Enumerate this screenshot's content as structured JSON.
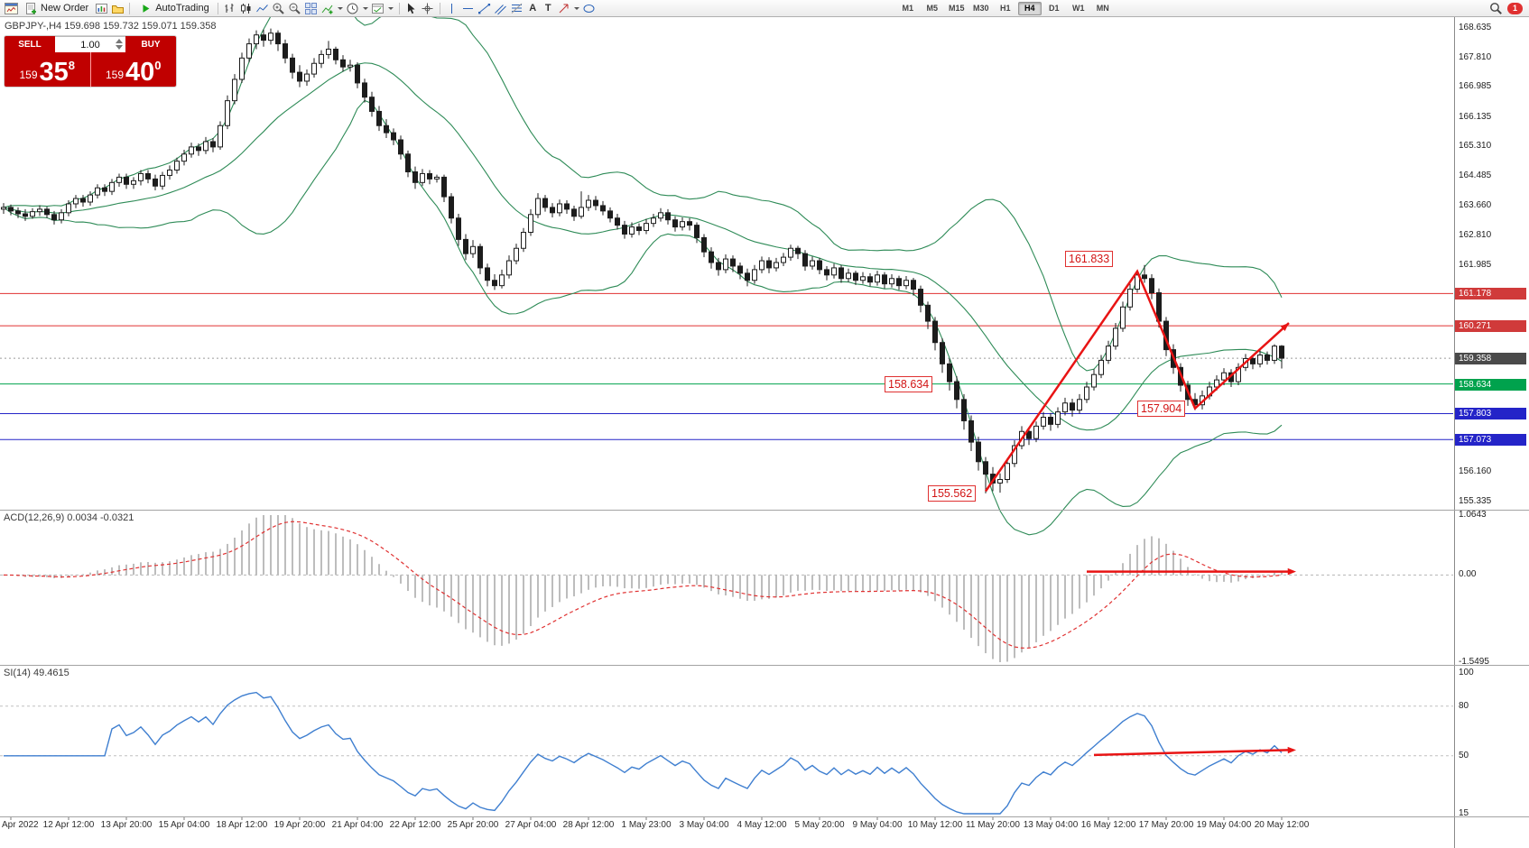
{
  "toolbar": {
    "new_order_label": "New Order",
    "autotrading_label": "AutoTrading",
    "timeframes": [
      "M1",
      "M5",
      "M15",
      "M30",
      "H1",
      "H4",
      "D1",
      "W1",
      "MN"
    ],
    "active_timeframe": "H4",
    "badge": "1",
    "text_tool_letter": "A",
    "label_tool_letter": "T"
  },
  "chart": {
    "symbol_line": "GBPJPY-,H4  159.698 159.732 159.071 159.358"
  },
  "trade_panel": {
    "sell_label": "SELL",
    "buy_label": "BUY",
    "volume": "1.00",
    "sell_base": "159",
    "sell_pips": "35",
    "sell_sup": "8",
    "buy_base": "159",
    "buy_pips": "40",
    "buy_sup": "0"
  },
  "macd": {
    "label": "ACD(12,26,9) 0.0034 -0.0321",
    "axis_labels": [
      "1.0643",
      "0.00",
      "-1.5495"
    ]
  },
  "rsi": {
    "label": "SI(14) 49.4615",
    "axis_labels": [
      "100",
      "80",
      "50",
      "15"
    ],
    "levels": [
      80,
      50
    ]
  },
  "price_axis": {
    "labels": [
      "168.635",
      "167.810",
      "166.985",
      "166.135",
      "165.310",
      "164.485",
      "163.660",
      "162.810",
      "161.985",
      "156.160",
      "155.335"
    ],
    "tags": [
      {
        "text": "161.178",
        "bg": "#d03a3a"
      },
      {
        "text": "160.271",
        "bg": "#d03a3a"
      },
      {
        "text": "159.358",
        "bg": "#4a4a4a"
      },
      {
        "text": "158.634",
        "bg": "#00a24d"
      },
      {
        "text": "157.803",
        "bg": "#2424c8"
      },
      {
        "text": "157.073",
        "bg": "#2424c8"
      }
    ]
  },
  "time_axis": {
    "labels": [
      "Apr 2022",
      "12 Apr 12:00",
      "13 Apr 20:00",
      "15 Apr 04:00",
      "18 Apr 12:00",
      "19 Apr 20:00",
      "21 Apr 04:00",
      "22 Apr 12:00",
      "25 Apr 20:00",
      "27 Apr 04:00",
      "28 Apr 12:00",
      "1 May 23:00",
      "3 May 04:00",
      "4 May 12:00",
      "5 May 20:00",
      "9 May 04:00",
      "10 May 12:00",
      "11 May 20:00",
      "13 May 04:00",
      "16 May 12:00",
      "17 May 20:00",
      "19 May 04:00",
      "20 May 12:00"
    ]
  },
  "chart_data": {
    "type": "candlestick",
    "symbol": "GBPJPY-",
    "timeframe": "H4",
    "title": "GBPJPY-,H4",
    "ohlc_current": {
      "open": 159.698,
      "high": 159.732,
      "low": 159.071,
      "close": 159.358
    },
    "ylim": [
      155.1,
      168.95
    ],
    "candles": [
      [
        163.55,
        163.72,
        163.42,
        163.6
      ],
      [
        163.6,
        163.68,
        163.38,
        163.5
      ],
      [
        163.5,
        163.6,
        163.3,
        163.42
      ],
      [
        163.42,
        163.55,
        163.22,
        163.35
      ],
      [
        163.35,
        163.58,
        163.28,
        163.48
      ],
      [
        163.48,
        163.66,
        163.36,
        163.55
      ],
      [
        163.55,
        163.62,
        163.3,
        163.4
      ],
      [
        163.4,
        163.5,
        163.12,
        163.25
      ],
      [
        163.25,
        163.55,
        163.15,
        163.45
      ],
      [
        163.45,
        163.8,
        163.35,
        163.7
      ],
      [
        163.7,
        163.95,
        163.58,
        163.85
      ],
      [
        163.85,
        163.95,
        163.62,
        163.75
      ],
      [
        163.75,
        164.05,
        163.65,
        163.95
      ],
      [
        163.95,
        164.25,
        163.85,
        164.15
      ],
      [
        164.15,
        164.25,
        163.92,
        164.05
      ],
      [
        164.05,
        164.4,
        163.95,
        164.3
      ],
      [
        164.3,
        164.55,
        164.18,
        164.45
      ],
      [
        164.45,
        164.55,
        164.12,
        164.25
      ],
      [
        164.25,
        164.45,
        164.12,
        164.35
      ],
      [
        164.35,
        164.65,
        164.22,
        164.55
      ],
      [
        164.55,
        164.65,
        164.28,
        164.4
      ],
      [
        164.4,
        164.52,
        164.08,
        164.2
      ],
      [
        164.2,
        164.6,
        164.1,
        164.5
      ],
      [
        164.5,
        164.78,
        164.38,
        164.65
      ],
      [
        164.65,
        165.0,
        164.55,
        164.9
      ],
      [
        164.9,
        165.22,
        164.78,
        165.1
      ],
      [
        165.1,
        165.42,
        165.0,
        165.3
      ],
      [
        165.3,
        165.4,
        165.05,
        165.2
      ],
      [
        165.2,
        165.58,
        165.1,
        165.45
      ],
      [
        165.45,
        165.55,
        165.15,
        165.3
      ],
      [
        165.3,
        166.02,
        165.22,
        165.9
      ],
      [
        165.9,
        166.75,
        165.8,
        166.6
      ],
      [
        166.6,
        167.35,
        166.5,
        167.2
      ],
      [
        167.2,
        167.95,
        167.1,
        167.8
      ],
      [
        167.8,
        168.35,
        167.68,
        168.2
      ],
      [
        168.2,
        168.58,
        168.05,
        168.45
      ],
      [
        168.45,
        168.6,
        168.12,
        168.3
      ],
      [
        168.3,
        168.63,
        168.18,
        168.5
      ],
      [
        168.5,
        168.58,
        168.0,
        168.2
      ],
      [
        168.2,
        168.32,
        167.65,
        167.8
      ],
      [
        167.8,
        167.92,
        167.22,
        167.4
      ],
      [
        167.4,
        167.6,
        166.98,
        167.15
      ],
      [
        167.15,
        167.48,
        167.02,
        167.35
      ],
      [
        167.35,
        167.8,
        167.25,
        167.65
      ],
      [
        167.65,
        168.02,
        167.52,
        167.9
      ],
      [
        167.9,
        168.28,
        167.78,
        168.05
      ],
      [
        168.05,
        168.12,
        167.62,
        167.75
      ],
      [
        167.75,
        167.88,
        167.42,
        167.55
      ],
      [
        167.55,
        167.75,
        167.42,
        167.6
      ],
      [
        167.6,
        167.68,
        166.95,
        167.1
      ],
      [
        167.1,
        167.22,
        166.55,
        166.7
      ],
      [
        166.7,
        166.85,
        166.15,
        166.3
      ],
      [
        166.3,
        166.45,
        165.75,
        165.9
      ],
      [
        165.9,
        166.08,
        165.55,
        165.7
      ],
      [
        165.7,
        165.82,
        165.35,
        165.5
      ],
      [
        165.5,
        165.62,
        164.95,
        165.1
      ],
      [
        165.1,
        165.2,
        164.45,
        164.6
      ],
      [
        164.6,
        164.75,
        164.12,
        164.3
      ],
      [
        164.3,
        164.68,
        164.2,
        164.55
      ],
      [
        164.55,
        164.65,
        164.25,
        164.4
      ],
      [
        164.4,
        164.52,
        164.3,
        164.45
      ],
      [
        164.45,
        164.52,
        163.75,
        163.9
      ],
      [
        163.9,
        164.0,
        163.15,
        163.3
      ],
      [
        163.3,
        163.42,
        162.52,
        162.7
      ],
      [
        162.7,
        162.85,
        162.12,
        162.3
      ],
      [
        162.3,
        162.68,
        162.18,
        162.5
      ],
      [
        162.5,
        162.58,
        161.72,
        161.9
      ],
      [
        161.9,
        162.02,
        161.38,
        161.55
      ],
      [
        161.55,
        161.72,
        161.28,
        161.4
      ],
      [
        161.4,
        161.85,
        161.32,
        161.7
      ],
      [
        161.7,
        162.25,
        161.6,
        162.1
      ],
      [
        162.1,
        162.58,
        162.0,
        162.45
      ],
      [
        162.45,
        163.02,
        162.35,
        162.9
      ],
      [
        162.9,
        163.55,
        162.8,
        163.4
      ],
      [
        163.4,
        164.0,
        163.3,
        163.85
      ],
      [
        163.85,
        163.95,
        163.48,
        163.6
      ],
      [
        163.6,
        163.72,
        163.32,
        163.45
      ],
      [
        163.45,
        163.82,
        163.35,
        163.7
      ],
      [
        163.7,
        163.8,
        163.42,
        163.55
      ],
      [
        163.55,
        163.65,
        163.22,
        163.35
      ],
      [
        163.35,
        164.05,
        163.28,
        163.6
      ],
      [
        163.6,
        163.95,
        163.5,
        163.8
      ],
      [
        163.8,
        163.92,
        163.52,
        163.65
      ],
      [
        163.65,
        163.78,
        163.38,
        163.5
      ],
      [
        163.5,
        163.6,
        163.18,
        163.3
      ],
      [
        163.3,
        163.42,
        162.98,
        163.1
      ],
      [
        163.1,
        163.22,
        162.72,
        162.85
      ],
      [
        162.85,
        163.18,
        162.75,
        163.05
      ],
      [
        163.05,
        163.15,
        162.82,
        162.95
      ],
      [
        162.95,
        163.28,
        162.85,
        163.15
      ],
      [
        163.15,
        163.42,
        163.05,
        163.3
      ],
      [
        163.3,
        163.58,
        163.2,
        163.45
      ],
      [
        163.45,
        163.55,
        163.12,
        163.25
      ],
      [
        163.25,
        163.35,
        162.92,
        163.05
      ],
      [
        163.05,
        163.32,
        162.95,
        163.2
      ],
      [
        163.2,
        163.3,
        162.95,
        163.1
      ],
      [
        163.1,
        163.18,
        162.6,
        162.75
      ],
      [
        162.75,
        162.85,
        162.2,
        162.35
      ],
      [
        162.35,
        162.48,
        161.88,
        162.05
      ],
      [
        162.05,
        162.18,
        161.68,
        161.85
      ],
      [
        161.85,
        162.28,
        161.75,
        162.15
      ],
      [
        162.15,
        162.25,
        161.78,
        161.95
      ],
      [
        161.95,
        162.05,
        161.58,
        161.75
      ],
      [
        161.75,
        161.88,
        161.38,
        161.55
      ],
      [
        161.55,
        161.98,
        161.45,
        161.85
      ],
      [
        161.85,
        162.22,
        161.75,
        162.1
      ],
      [
        162.1,
        162.2,
        161.75,
        161.9
      ],
      [
        161.9,
        162.18,
        161.8,
        162.05
      ],
      [
        162.05,
        162.32,
        161.95,
        162.2
      ],
      [
        162.2,
        162.55,
        162.1,
        162.45
      ],
      [
        162.45,
        162.52,
        162.15,
        162.3
      ],
      [
        162.3,
        162.4,
        161.82,
        161.95
      ],
      [
        161.95,
        162.22,
        161.85,
        162.1
      ],
      [
        162.1,
        162.18,
        161.72,
        161.85
      ],
      [
        161.85,
        161.95,
        161.55,
        161.7
      ],
      [
        161.7,
        162.02,
        161.6,
        161.9
      ],
      [
        161.9,
        161.98,
        161.48,
        161.6
      ],
      [
        161.6,
        161.88,
        161.5,
        161.75
      ],
      [
        161.75,
        161.82,
        161.42,
        161.55
      ],
      [
        161.55,
        161.78,
        161.45,
        161.65
      ],
      [
        161.65,
        161.75,
        161.38,
        161.5
      ],
      [
        161.5,
        161.82,
        161.4,
        161.7
      ],
      [
        161.7,
        161.78,
        161.32,
        161.45
      ],
      [
        161.45,
        161.72,
        161.35,
        161.6
      ],
      [
        161.6,
        161.68,
        161.28,
        161.4
      ],
      [
        161.4,
        161.67,
        161.3,
        161.55
      ],
      [
        161.55,
        161.62,
        161.12,
        161.3
      ],
      [
        161.3,
        161.4,
        160.65,
        160.85
      ],
      [
        160.85,
        160.95,
        160.18,
        160.4
      ],
      [
        160.4,
        160.52,
        159.58,
        159.8
      ],
      [
        159.8,
        159.92,
        158.95,
        159.2
      ],
      [
        159.2,
        159.35,
        158.45,
        158.7
      ],
      [
        158.7,
        158.85,
        157.95,
        158.2
      ],
      [
        158.2,
        158.35,
        157.35,
        157.6
      ],
      [
        157.6,
        157.75,
        156.75,
        157.0
      ],
      [
        157.0,
        157.15,
        156.2,
        156.45
      ],
      [
        156.45,
        156.58,
        155.56,
        156.1
      ],
      [
        156.1,
        156.3,
        155.62,
        155.85
      ],
      [
        155.85,
        156.12,
        155.58,
        155.95
      ],
      [
        155.95,
        156.55,
        155.85,
        156.4
      ],
      [
        156.4,
        157.05,
        156.3,
        156.9
      ],
      [
        156.9,
        157.45,
        156.8,
        157.3
      ],
      [
        157.3,
        157.42,
        156.92,
        157.1
      ],
      [
        157.1,
        157.58,
        157.0,
        157.45
      ],
      [
        157.45,
        157.85,
        157.35,
        157.7
      ],
      [
        157.7,
        157.82,
        157.32,
        157.5
      ],
      [
        157.5,
        157.98,
        157.4,
        157.85
      ],
      [
        157.85,
        158.25,
        157.75,
        158.1
      ],
      [
        158.1,
        158.22,
        157.72,
        157.9
      ],
      [
        157.9,
        158.35,
        157.8,
        158.2
      ],
      [
        158.2,
        158.7,
        158.1,
        158.55
      ],
      [
        158.55,
        159.05,
        158.45,
        158.9
      ],
      [
        158.9,
        159.45,
        158.8,
        159.3
      ],
      [
        159.3,
        159.85,
        159.2,
        159.7
      ],
      [
        159.7,
        160.35,
        159.6,
        160.2
      ],
      [
        160.2,
        160.95,
        160.1,
        160.8
      ],
      [
        160.8,
        161.45,
        160.7,
        161.3
      ],
      [
        161.3,
        161.83,
        161.2,
        161.7
      ],
      [
        161.7,
        161.98,
        161.48,
        161.6
      ],
      [
        161.6,
        161.72,
        161.02,
        161.2
      ],
      [
        161.2,
        161.32,
        160.22,
        160.4
      ],
      [
        160.4,
        160.52,
        159.42,
        159.6
      ],
      [
        159.6,
        159.75,
        158.92,
        159.1
      ],
      [
        159.1,
        159.22,
        158.42,
        158.6
      ],
      [
        158.6,
        158.72,
        158.02,
        158.2
      ],
      [
        158.2,
        158.38,
        157.9,
        158.05
      ],
      [
        158.05,
        158.45,
        157.92,
        158.3
      ],
      [
        158.3,
        158.7,
        158.2,
        158.55
      ],
      [
        158.55,
        158.88,
        158.45,
        158.75
      ],
      [
        158.75,
        159.08,
        158.6,
        158.95
      ],
      [
        158.95,
        159.05,
        158.55,
        158.7
      ],
      [
        158.7,
        159.22,
        158.6,
        159.1
      ],
      [
        159.1,
        159.48,
        159.0,
        159.35
      ],
      [
        159.35,
        159.45,
        159.05,
        159.2
      ],
      [
        159.2,
        159.58,
        159.1,
        159.45
      ],
      [
        159.45,
        159.55,
        159.18,
        159.3
      ],
      [
        159.3,
        159.75,
        159.2,
        159.7
      ],
      [
        159.7,
        159.73,
        159.07,
        159.36
      ]
    ],
    "bollinger": {
      "period": 20,
      "deviation": 2,
      "color": "#2e8b57"
    },
    "horizontal_lines": [
      {
        "price": 161.178,
        "color": "#e03131",
        "style": "solid"
      },
      {
        "price": 160.271,
        "color": "#e03131",
        "style": "solid"
      },
      {
        "price": 159.358,
        "color": "#9a9a9a",
        "style": "dotted"
      },
      {
        "price": 158.634,
        "color": "#00a24d",
        "style": "solid"
      },
      {
        "price": 157.803,
        "color": "#2424c8",
        "style": "solid"
      },
      {
        "price": 157.073,
        "color": "#2424c8",
        "style": "solid"
      }
    ],
    "annotations": [
      {
        "text": "161.833",
        "index": 147,
        "price": 162.15
      },
      {
        "text": "158.634",
        "index": 122,
        "price": 158.634
      },
      {
        "text": "157.904",
        "index": 157,
        "price": 157.93
      },
      {
        "text": "155.562",
        "index": 128,
        "price": 155.55
      }
    ],
    "trend_arrows": {
      "color": "#e81414",
      "zigzag": [
        [
          136,
          155.62
        ],
        [
          157,
          161.8
        ],
        [
          165,
          157.95
        ],
        [
          178,
          160.35
        ]
      ],
      "macd_arrow": {
        "from": [
          150,
          0.06
        ],
        "to": [
          179,
          0.06
        ]
      },
      "rsi_arrow": {
        "from": [
          151,
          50.5
        ],
        "to": [
          179,
          53.5
        ]
      }
    },
    "indicators": {
      "macd": {
        "fast": 12,
        "slow": 26,
        "signal": 9,
        "histogram_color": "#bdbdbd",
        "signal_color": "#e03131",
        "ylim": [
          -1.5495,
          1.0643
        ]
      },
      "rsi": {
        "period": 14,
        "color": "#3f7fd0",
        "ylim": [
          15,
          100
        ]
      }
    }
  }
}
